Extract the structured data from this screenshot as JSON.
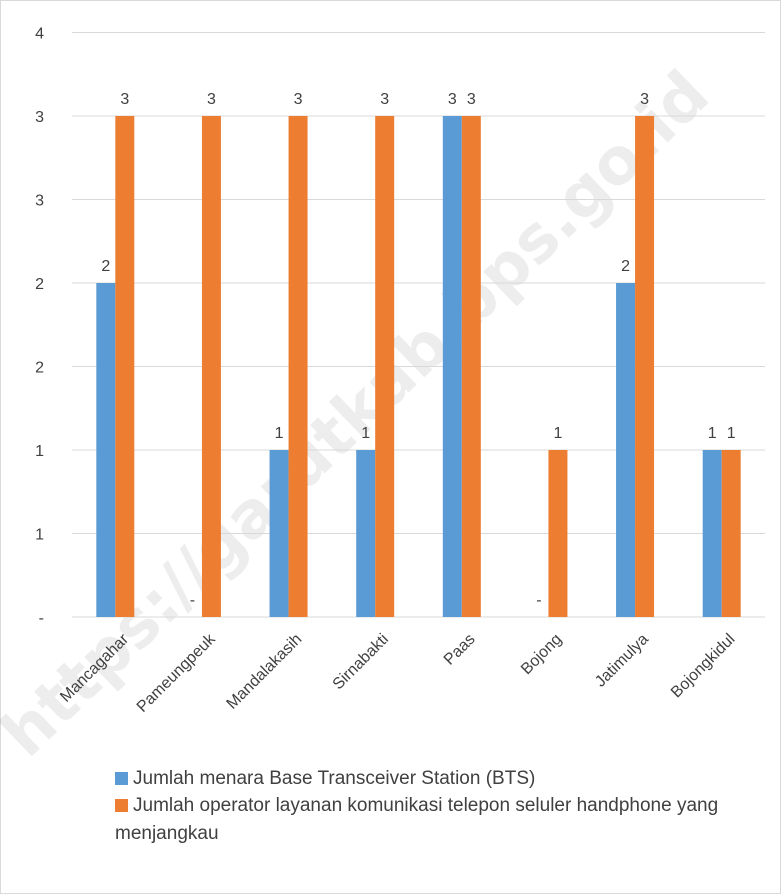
{
  "watermark": "https://garutkab.bps.go.id",
  "chart_data": {
    "type": "bar",
    "categories": [
      "Mancagahar",
      "Pameungpeuk",
      "Mandalakasih",
      "Sirnabakti",
      "Paas",
      "Bojong",
      "Jatimulya",
      "Bojongkidul"
    ],
    "series": [
      {
        "name": "Jumlah menara Base Transceiver Station (BTS)",
        "color": "#5b9bd5",
        "values": [
          2,
          0,
          1,
          1,
          3,
          0,
          2,
          1
        ],
        "data_labels": [
          "2",
          "-",
          "1",
          "1",
          "3",
          "-",
          "2",
          "1"
        ]
      },
      {
        "name": "Jumlah operator layanan komunikasi telepon seluler  handphone yang menjangkau",
        "color": "#ed7d31",
        "values": [
          3,
          3,
          3,
          3,
          3,
          1,
          3,
          1
        ],
        "data_labels": [
          "3",
          "3",
          "3",
          "3",
          "3",
          "1",
          "3",
          "1"
        ]
      }
    ],
    "y_ticks": [
      {
        "value": 0,
        "label": "-"
      },
      {
        "value": 0.5,
        "label": "1"
      },
      {
        "value": 1,
        "label": "1"
      },
      {
        "value": 1.5,
        "label": "2"
      },
      {
        "value": 2,
        "label": "2"
      },
      {
        "value": 2.5,
        "label": "3"
      },
      {
        "value": 3,
        "label": "3"
      },
      {
        "value": 3.5,
        "label": "4"
      }
    ],
    "ylim": [
      0,
      3.5
    ],
    "grid": true,
    "legend_position": "bottom"
  }
}
